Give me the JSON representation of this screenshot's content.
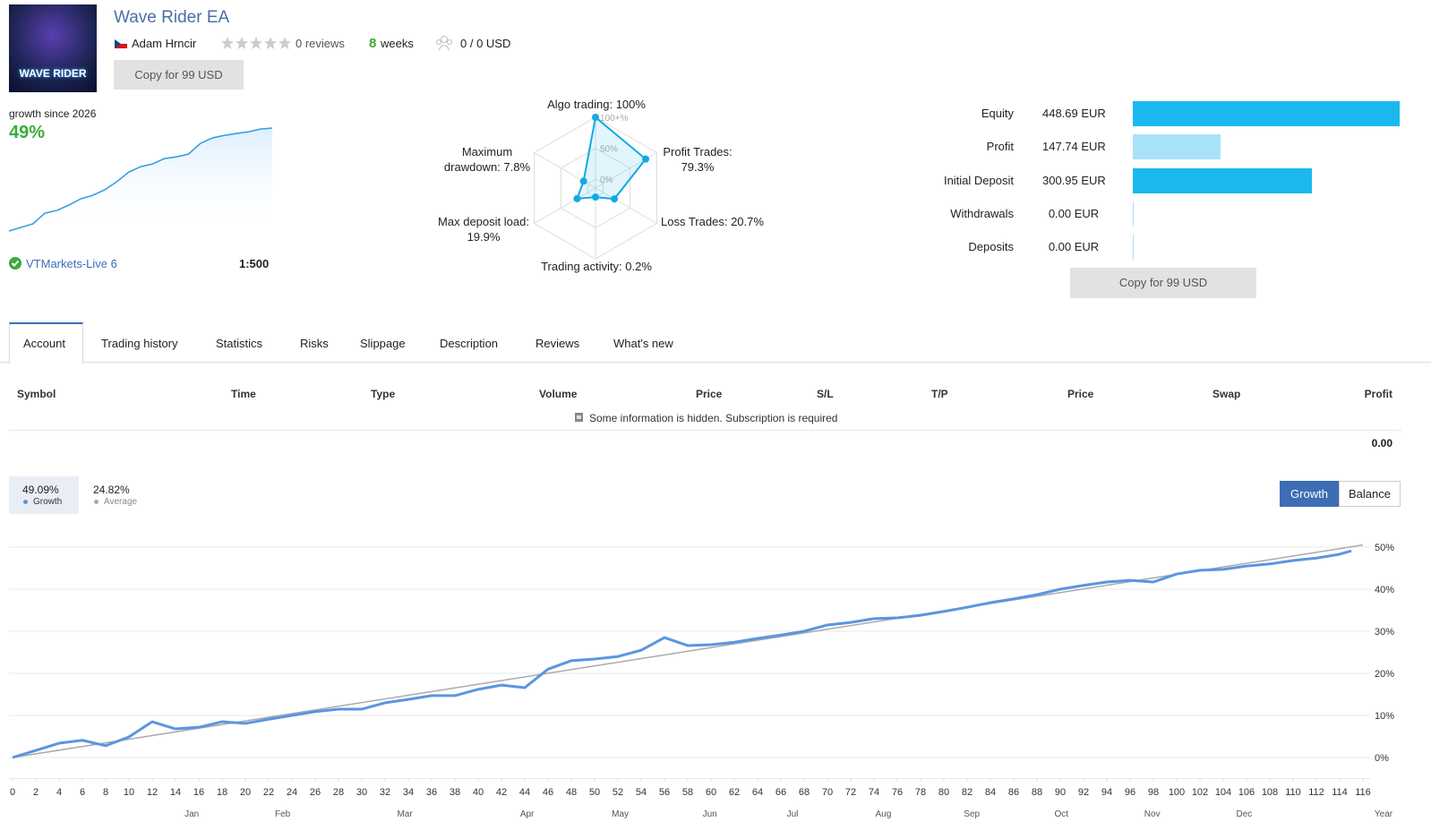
{
  "header": {
    "logo_text": "WAVE RIDER",
    "title": "Wave Rider EA",
    "author": "Adam Hrncir",
    "reviews": "0 reviews",
    "weeks": "8",
    "weeks_label": "weeks",
    "subscribers": "0 / 0 USD",
    "copy_button": "Copy for 99 USD"
  },
  "growth_summary": {
    "label": "growth since 2026",
    "value": "49%",
    "broker": "VTMarkets-Live 6",
    "leverage": "1:500",
    "chart": {
      "type": "line",
      "color": "#3a9fdf",
      "values": [
        0,
        1.7,
        3.4,
        8.5,
        9.8,
        12.3,
        15.3,
        17,
        19.6,
        23.4,
        28,
        30.6,
        31.9,
        34.5,
        35.3,
        36.6,
        41.7,
        44.3,
        45.5,
        46.4,
        47.2,
        48.5,
        49
      ]
    }
  },
  "radar": {
    "type": "radar",
    "color": "#12a9e5",
    "ticks": [
      {
        "value": 100,
        "label": "100+%"
      },
      {
        "value": 50,
        "label": "50%"
      },
      {
        "value": 0,
        "label": "0%"
      }
    ],
    "axes": [
      {
        "label": "Algo trading:",
        "value": 100,
        "value_label": "100%"
      },
      {
        "label": "Profit Trades:",
        "value": 79.3,
        "value_label": "79.3%"
      },
      {
        "label": "Loss Trades:",
        "value": 20.7,
        "value_label": "20.7%"
      },
      {
        "label": "Trading activity:",
        "value": 0.2,
        "value_label": "0.2%"
      },
      {
        "label": "Max deposit load:",
        "value": 19.9,
        "value_label": "19.9%"
      },
      {
        "label": "Maximum drawdown:",
        "value": 7.8,
        "value_label": "7.8%"
      }
    ]
  },
  "account_stats": {
    "type": "bar",
    "rows": [
      {
        "label": "Equity",
        "value": 448.69,
        "value_label": "448.69 EUR",
        "color": "#1bb8f0"
      },
      {
        "label": "Profit",
        "value": 147.74,
        "value_label": "147.74 EUR",
        "color": "#a9e2f8"
      },
      {
        "label": "Initial Deposit",
        "value": 300.95,
        "value_label": "300.95 EUR",
        "color": "#1bb8f0"
      },
      {
        "label": "Withdrawals",
        "value": 0,
        "value_label": "0.00 EUR",
        "color": "#a9e2f8"
      },
      {
        "label": "Deposits",
        "value": 0,
        "value_label": "0.00 EUR",
        "color": "#a9e2f8"
      }
    ],
    "copy_button": "Copy for 99 USD"
  },
  "tabs": [
    "Account",
    "Trading history",
    "Statistics",
    "Risks",
    "Slippage",
    "Description",
    "Reviews",
    "What's new"
  ],
  "trades_table": {
    "columns": [
      "Symbol",
      "Time",
      "Type",
      "Volume",
      "Price",
      "S/L",
      "T/P",
      "Price",
      "Swap",
      "Profit"
    ],
    "notice": "Some information is hidden. Subscription is required",
    "total": "0.00"
  },
  "chart_data": {
    "type": "line",
    "buttons": [
      "Growth",
      "Balance"
    ],
    "xlim": [
      0,
      116
    ],
    "xticks": [
      0,
      2,
      4,
      6,
      8,
      10,
      12,
      14,
      16,
      18,
      20,
      22,
      24,
      26,
      28,
      30,
      32,
      34,
      36,
      38,
      40,
      42,
      44,
      46,
      48,
      50,
      52,
      54,
      56,
      58,
      60,
      62,
      64,
      66,
      68,
      70,
      72,
      74,
      76,
      78,
      80,
      82,
      84,
      86,
      88,
      90,
      92,
      94,
      96,
      98,
      100,
      102,
      104,
      106,
      108,
      110,
      112,
      114,
      116
    ],
    "ylim": [
      -5,
      55
    ],
    "yticks": [
      {
        "value": 0,
        "label": "0%"
      },
      {
        "value": 10,
        "label": "10%"
      },
      {
        "value": 20,
        "label": "20%"
      },
      {
        "value": 30,
        "label": "30%"
      },
      {
        "value": 40,
        "label": "40%"
      },
      {
        "value": 50,
        "label": "50%"
      }
    ],
    "grid": true,
    "x_end_label": "Year",
    "months": [
      {
        "value": 15.4,
        "label": "Jan"
      },
      {
        "value": 23.2,
        "label": "Feb"
      },
      {
        "value": 33.7,
        "label": "Mar"
      },
      {
        "value": 44.2,
        "label": "Apr"
      },
      {
        "value": 52.2,
        "label": "May"
      },
      {
        "value": 59.9,
        "label": "Jun"
      },
      {
        "value": 67,
        "label": "Jul"
      },
      {
        "value": 74.8,
        "label": "Aug"
      },
      {
        "value": 82.4,
        "label": "Sep"
      },
      {
        "value": 90.1,
        "label": "Oct"
      },
      {
        "value": 97.9,
        "label": "Nov"
      },
      {
        "value": 105.8,
        "label": "Dec"
      }
    ],
    "series": [
      {
        "name": "Growth",
        "summary": "49.09%",
        "color": "#5b95e0",
        "x": [
          0,
          2,
          4,
          6,
          8,
          10,
          12,
          14,
          16,
          18,
          20,
          22,
          24,
          26,
          28,
          30,
          32,
          34,
          36,
          38,
          40,
          42,
          44,
          46,
          48,
          50,
          52,
          54,
          56,
          58,
          60,
          62,
          64,
          66,
          68,
          70,
          72,
          74,
          76,
          78,
          80,
          82,
          84,
          86,
          88,
          90,
          92,
          94,
          96,
          98,
          100,
          102,
          104,
          106,
          108,
          110,
          112,
          114,
          115
        ],
        "values": [
          0,
          1.7,
          3.4,
          4.1,
          2.8,
          4.9,
          8.5,
          6.8,
          7.2,
          8.5,
          8.1,
          9.1,
          10.0,
          10.9,
          11.5,
          11.5,
          13.0,
          13.8,
          14.7,
          14.7,
          16.2,
          17.2,
          16.6,
          21.0,
          23.0,
          23.4,
          24.0,
          25.5,
          28.5,
          26.6,
          26.8,
          27.4,
          28.3,
          29.1,
          30.0,
          31.5,
          32.1,
          33.0,
          33.2,
          33.8,
          34.7,
          35.7,
          36.8,
          37.7,
          38.7,
          40.0,
          40.9,
          41.7,
          42.1,
          41.7,
          43.6,
          44.5,
          44.7,
          45.5,
          46.0,
          46.8,
          47.4,
          48.3,
          49.1
        ]
      },
      {
        "name": "Average",
        "summary": "24.82%",
        "color": "#aaaaaa",
        "x": [
          0,
          116
        ],
        "values": [
          0,
          50.5
        ]
      }
    ]
  }
}
